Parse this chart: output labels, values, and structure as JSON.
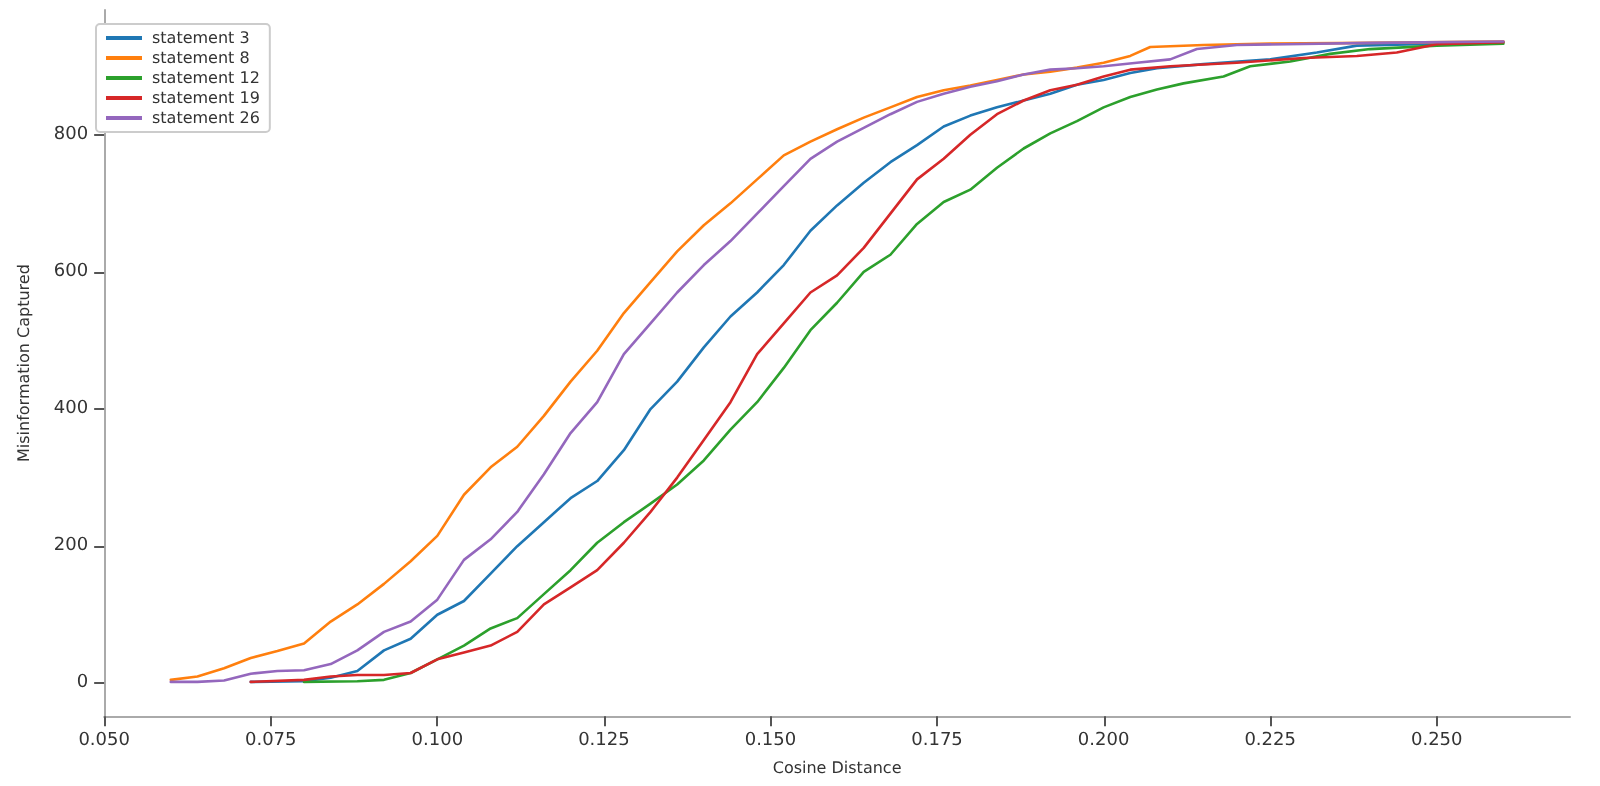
{
  "chart_data": {
    "type": "line",
    "xlabel": "Cosine Distance",
    "ylabel": "Misinformation Captured",
    "xlim": [
      0.05,
      0.27
    ],
    "ylim": [
      -48,
      982
    ],
    "xticks": [
      {
        "value": 0.05,
        "label": "0.050"
      },
      {
        "value": 0.075,
        "label": "0.075"
      },
      {
        "value": 0.1,
        "label": "0.100"
      },
      {
        "value": 0.125,
        "label": "0.125"
      },
      {
        "value": 0.15,
        "label": "0.150"
      },
      {
        "value": 0.175,
        "label": "0.175"
      },
      {
        "value": 0.2,
        "label": "0.200"
      },
      {
        "value": 0.225,
        "label": "0.225"
      },
      {
        "value": 0.25,
        "label": "0.250"
      }
    ],
    "yticks": [
      0,
      200,
      400,
      600,
      800
    ],
    "grid": false,
    "legend": "top left",
    "marker": "none",
    "line_style": "solid",
    "series": [
      {
        "name": "statement 3",
        "color": "#1f77b4",
        "x": [
          0.072,
          0.08,
          0.084,
          0.088,
          0.092,
          0.096,
          0.1,
          0.104,
          0.108,
          0.112,
          0.116,
          0.12,
          0.124,
          0.128,
          0.132,
          0.136,
          0.14,
          0.144,
          0.148,
          0.152,
          0.156,
          0.16,
          0.164,
          0.168,
          0.172,
          0.176,
          0.18,
          0.184,
          0.188,
          0.192,
          0.196,
          0.2,
          0.204,
          0.208,
          0.215,
          0.225,
          0.232,
          0.238,
          0.25,
          0.26
        ],
        "values": [
          2,
          3,
          8,
          18,
          48,
          65,
          100,
          120,
          160,
          200,
          235,
          270,
          295,
          340,
          400,
          440,
          490,
          535,
          570,
          610,
          660,
          697,
          730,
          760,
          785,
          812,
          828,
          840,
          850,
          860,
          873,
          880,
          890,
          897,
          903,
          910,
          920,
          930,
          933,
          935
        ]
      },
      {
        "name": "statement 8",
        "color": "#ff7f0e",
        "x": [
          0.06,
          0.064,
          0.068,
          0.072,
          0.076,
          0.08,
          0.084,
          0.088,
          0.092,
          0.096,
          0.1,
          0.104,
          0.108,
          0.112,
          0.116,
          0.12,
          0.124,
          0.128,
          0.132,
          0.136,
          0.14,
          0.144,
          0.148,
          0.152,
          0.156,
          0.16,
          0.164,
          0.168,
          0.172,
          0.176,
          0.18,
          0.184,
          0.188,
          0.192,
          0.196,
          0.2,
          0.204,
          0.207,
          0.215,
          0.225,
          0.24,
          0.26
        ],
        "values": [
          5,
          10,
          22,
          37,
          47,
          58,
          90,
          115,
          145,
          178,
          215,
          275,
          315,
          345,
          390,
          440,
          485,
          540,
          585,
          630,
          668,
          700,
          735,
          770,
          790,
          808,
          825,
          840,
          855,
          865,
          872,
          880,
          888,
          892,
          898,
          905,
          915,
          928,
          931,
          933,
          934,
          936
        ]
      },
      {
        "name": "statement 12",
        "color": "#2ca02c",
        "x": [
          0.08,
          0.088,
          0.092,
          0.096,
          0.1,
          0.104,
          0.108,
          0.112,
          0.116,
          0.12,
          0.124,
          0.128,
          0.132,
          0.136,
          0.14,
          0.144,
          0.148,
          0.152,
          0.156,
          0.16,
          0.164,
          0.168,
          0.172,
          0.176,
          0.18,
          0.184,
          0.188,
          0.192,
          0.196,
          0.2,
          0.204,
          0.208,
          0.212,
          0.218,
          0.222,
          0.228,
          0.234,
          0.24,
          0.25,
          0.26
        ],
        "values": [
          2,
          3,
          5,
          15,
          35,
          55,
          80,
          95,
          130,
          165,
          205,
          235,
          262,
          290,
          325,
          370,
          410,
          460,
          515,
          555,
          600,
          625,
          670,
          702,
          720,
          752,
          780,
          802,
          820,
          840,
          855,
          866,
          875,
          885,
          900,
          907,
          918,
          925,
          930,
          933
        ]
      },
      {
        "name": "statement 19",
        "color": "#d62728",
        "x": [
          0.072,
          0.08,
          0.084,
          0.088,
          0.092,
          0.096,
          0.1,
          0.104,
          0.108,
          0.112,
          0.116,
          0.12,
          0.124,
          0.128,
          0.132,
          0.136,
          0.14,
          0.144,
          0.148,
          0.152,
          0.156,
          0.16,
          0.164,
          0.168,
          0.172,
          0.176,
          0.18,
          0.184,
          0.188,
          0.192,
          0.196,
          0.2,
          0.204,
          0.21,
          0.22,
          0.23,
          0.238,
          0.244,
          0.25,
          0.26
        ],
        "values": [
          2,
          5,
          10,
          12,
          12,
          15,
          35,
          45,
          55,
          75,
          115,
          140,
          165,
          205,
          250,
          300,
          355,
          410,
          480,
          525,
          570,
          595,
          635,
          685,
          735,
          765,
          800,
          830,
          850,
          865,
          873,
          885,
          895,
          900,
          905,
          912,
          915,
          920,
          932,
          935
        ]
      },
      {
        "name": "statement 26",
        "color": "#9467bd",
        "x": [
          0.06,
          0.064,
          0.068,
          0.072,
          0.076,
          0.08,
          0.084,
          0.088,
          0.092,
          0.096,
          0.1,
          0.104,
          0.108,
          0.112,
          0.116,
          0.12,
          0.124,
          0.128,
          0.132,
          0.136,
          0.14,
          0.144,
          0.148,
          0.152,
          0.156,
          0.16,
          0.164,
          0.168,
          0.172,
          0.176,
          0.18,
          0.184,
          0.188,
          0.192,
          0.196,
          0.2,
          0.205,
          0.21,
          0.214,
          0.22,
          0.24,
          0.26
        ],
        "values": [
          2,
          2,
          4,
          14,
          18,
          19,
          28,
          48,
          75,
          90,
          122,
          180,
          210,
          250,
          305,
          365,
          410,
          480,
          525,
          570,
          610,
          645,
          685,
          725,
          765,
          790,
          810,
          830,
          848,
          860,
          870,
          878,
          888,
          895,
          897,
          900,
          905,
          910,
          925,
          931,
          934,
          936
        ]
      }
    ]
  }
}
